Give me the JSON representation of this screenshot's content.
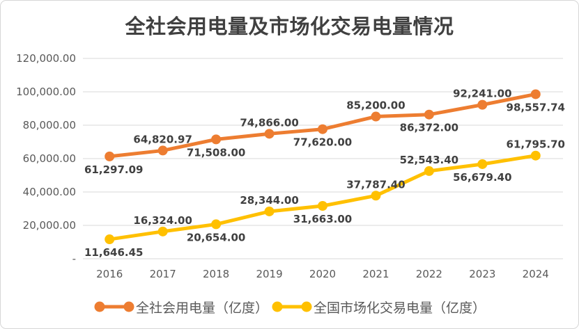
{
  "chart_data": {
    "type": "line",
    "title": "全社会用电量及市场化交易电量情况",
    "categories": [
      "2016",
      "2017",
      "2018",
      "2019",
      "2020",
      "2021",
      "2022",
      "2023",
      "2024"
    ],
    "series": [
      {
        "name": "全社会用电量（亿度）",
        "color": "#ED7D31",
        "values": [
          61297.09,
          64820.97,
          71508.0,
          74866.0,
          77620.0,
          85200.0,
          86372.0,
          92241.0,
          98557.74
        ],
        "labels": [
          "61,297.09",
          "64,820.97",
          "71,508.00",
          "74,866.00",
          "77,620.00",
          "85,200.00",
          "86,372.00",
          "92,241.00",
          "98,557.74"
        ],
        "label_positions": [
          "below-start",
          "above",
          "below",
          "above",
          "below",
          "above",
          "below",
          "above",
          "below-end"
        ]
      },
      {
        "name": "全国市场化交易电量（亿度）",
        "color": "#FFC000",
        "values": [
          11646.45,
          16324.0,
          20654.0,
          28344.0,
          31663.0,
          37787.4,
          52543.4,
          56679.4,
          61795.7
        ],
        "labels": [
          "11,646.45",
          "16,324.00",
          "20,654.00",
          "28,344.00",
          "31,663.00",
          "37,787.40",
          "52,543.40",
          "56,679.40",
          "61,795.70"
        ],
        "label_positions": [
          "below-start",
          "above",
          "below",
          "above",
          "below",
          "above",
          "above",
          "below",
          "above-end"
        ]
      }
    ],
    "y_axis": {
      "min": 0,
      "max": 120000,
      "step": 20000,
      "tick_labels": [
        "120,000.00",
        "100,000.00",
        "80,000.00",
        "60,000.00",
        "40,000.00",
        "20,000.00",
        "-"
      ]
    },
    "grid": true,
    "legend_position": "bottom",
    "styles": {
      "grid_color": "#D9D9D9",
      "axis_text_color": "#595959",
      "data_label_color": "#404040",
      "title_color": "#404040",
      "background": "#FFFFFF",
      "border_color": "#D6D6D6"
    }
  }
}
